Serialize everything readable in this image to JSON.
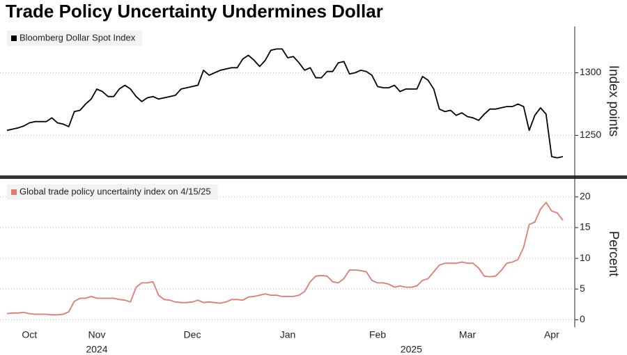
{
  "chart_data": [
    {
      "type": "line",
      "title": "Trade Policy Uncertainty Undermines Dollar",
      "y_label": "Index points",
      "series": [
        {
          "name": "Bloomberg Dollar Spot Index",
          "color": "#000000",
          "values": [
            1254,
            1255,
            1256,
            1257.5,
            1260,
            1261,
            1261,
            1261,
            1264,
            1260,
            1259,
            1257,
            1269,
            1270,
            1275,
            1279,
            1287,
            1285,
            1281,
            1281,
            1287,
            1290,
            1287,
            1281,
            1277,
            1280,
            1281,
            1279,
            1280,
            1281,
            1282,
            1287,
            1288,
            1289,
            1290,
            1302,
            1298,
            1300,
            1302,
            1303,
            1304,
            1304,
            1311,
            1314,
            1310,
            1305,
            1310,
            1318,
            1319,
            1319,
            1312,
            1313,
            1308,
            1302,
            1304,
            1296,
            1296,
            1301,
            1301,
            1308,
            1309,
            1299,
            1300,
            1302,
            1301,
            1298,
            1289,
            1288,
            1288,
            1290,
            1285,
            1287,
            1287,
            1287,
            1297,
            1294,
            1287,
            1271,
            1269,
            1270,
            1266,
            1268,
            1265,
            1264,
            1262,
            1267,
            1271,
            1271,
            1272,
            1273,
            1273,
            1275,
            1273,
            1254,
            1266,
            1272,
            1267,
            1233,
            1232,
            1233
          ]
        }
      ],
      "ylim": [
        1218,
        1337
      ],
      "yticks": [
        1250,
        1300
      ],
      "grid": true
    },
    {
      "type": "line",
      "y_label": "Percent",
      "categories": [
        null,
        null,
        null,
        null,
        "Oct",
        null,
        null,
        null,
        null,
        null,
        null,
        null,
        null,
        null,
        null,
        null,
        "Nov",
        null,
        null,
        null,
        null,
        null,
        null,
        null,
        null,
        null,
        null,
        null,
        null,
        null,
        null,
        null,
        null,
        "Dec",
        null,
        null,
        null,
        null,
        null,
        null,
        null,
        null,
        null,
        null,
        null,
        null,
        null,
        null,
        null,
        null,
        "Jan",
        null,
        null,
        null,
        null,
        null,
        null,
        null,
        null,
        null,
        null,
        null,
        null,
        null,
        null,
        null,
        "Feb",
        null,
        null,
        null,
        null,
        null,
        null,
        null,
        null,
        null,
        null,
        null,
        null,
        null,
        null,
        null,
        "Mar",
        null,
        null,
        null,
        null,
        null,
        null,
        null,
        null,
        null,
        null,
        null,
        null,
        null,
        null,
        "Apr",
        null,
        null
      ],
      "category_groups": [
        null,
        null,
        null,
        null,
        null,
        null,
        null,
        null,
        null,
        null,
        null,
        null,
        null,
        null,
        null,
        null,
        "2024",
        null,
        null,
        null,
        null,
        null,
        null,
        null,
        null,
        null,
        null,
        null,
        null,
        null,
        null,
        null,
        null,
        null,
        null,
        null,
        null,
        null,
        null,
        null,
        null,
        null,
        null,
        null,
        null,
        null,
        null,
        null,
        null,
        null,
        null,
        null,
        null,
        null,
        null,
        null,
        null,
        null,
        null,
        null,
        null,
        null,
        null,
        null,
        null,
        null,
        null,
        null,
        null,
        null,
        null,
        null,
        "2025",
        null,
        null,
        null,
        null,
        null,
        null,
        null,
        null,
        null,
        null,
        null,
        null,
        null,
        null,
        null,
        null,
        null,
        null,
        null,
        null,
        null,
        null,
        null,
        null,
        null,
        null,
        null
      ],
      "series": [
        {
          "name": "Global trade policy uncertainty index on 4/15/25",
          "color": "#e07b72",
          "values": [
            1.0,
            1.1,
            1.1,
            1.2,
            1.0,
            0.9,
            0.9,
            0.9,
            0.8,
            0.8,
            0.9,
            1.3,
            3.0,
            3.5,
            3.5,
            3.8,
            3.5,
            3.5,
            3.5,
            3.5,
            3.3,
            3.2,
            2.9,
            5.3,
            6.0,
            6.0,
            6.2,
            4.0,
            3.3,
            3.2,
            2.9,
            2.8,
            2.8,
            2.9,
            3.2,
            2.8,
            2.9,
            2.8,
            2.7,
            2.9,
            3.3,
            3.3,
            3.2,
            3.7,
            3.8,
            4.0,
            4.2,
            4.0,
            4.0,
            3.8,
            3.8,
            3.8,
            4.0,
            4.6,
            6.2,
            7.1,
            7.2,
            7.1,
            6.2,
            6.0,
            6.7,
            8.1,
            8.1,
            8.0,
            7.8,
            6.4,
            6.0,
            6.0,
            5.8,
            5.3,
            5.5,
            5.3,
            5.3,
            5.5,
            6.4,
            6.7,
            7.8,
            8.9,
            9.2,
            9.2,
            9.2,
            9.4,
            9.2,
            9.2,
            8.4,
            7.1,
            7.0,
            7.1,
            8.0,
            9.2,
            9.4,
            9.8,
            11.8,
            15.5,
            15.9,
            18.0,
            19.1,
            17.7,
            17.4,
            16.2
          ]
        }
      ],
      "ylim": [
        -1.2,
        22.7
      ],
      "yticks": [
        0,
        5,
        10,
        15,
        20
      ],
      "grid": true
    }
  ]
}
